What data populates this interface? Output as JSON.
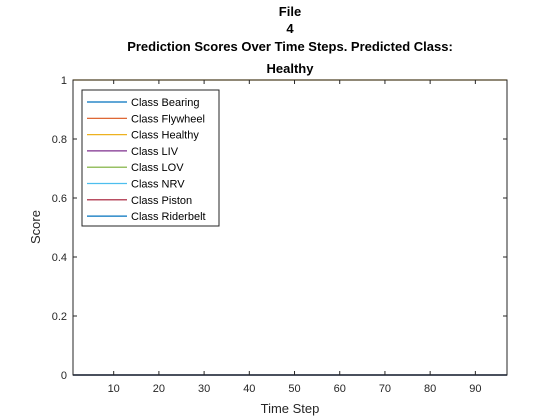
{
  "chart_data": {
    "type": "line",
    "title_lines": [
      "File",
      "4",
      "Prediction Scores Over Time Steps. Predicted Class:",
      "Healthy"
    ],
    "xlabel": "Time Step",
    "ylabel": "Score",
    "xlim": [
      1,
      97
    ],
    "ylim": [
      0,
      1
    ],
    "x_ticks": [
      10,
      20,
      30,
      40,
      50,
      60,
      70,
      80,
      90
    ],
    "y_ticks": [
      0,
      0.2,
      0.4,
      0.6,
      0.8,
      1
    ],
    "y_tick_labels": [
      "0",
      "0.2",
      "0.4",
      "0.6",
      "0.8",
      "1"
    ],
    "grid": false,
    "legend_position": "top-left",
    "series": [
      {
        "name": "Class Bearing",
        "color": "#0072BD",
        "x_range": [
          1,
          97
        ],
        "value": 0
      },
      {
        "name": "Class Flywheel",
        "color": "#D95319",
        "x_range": [
          1,
          97
        ],
        "value": 0
      },
      {
        "name": "Class Healthy",
        "color": "#EDB120",
        "x_range": [
          1,
          97
        ],
        "value": 1
      },
      {
        "name": "Class LIV",
        "color": "#7E2F8E",
        "x_range": [
          1,
          97
        ],
        "value": 0
      },
      {
        "name": "Class LOV",
        "color": "#77AC30",
        "x_range": [
          1,
          97
        ],
        "value": 0
      },
      {
        "name": "Class NRV",
        "color": "#4DBEEE",
        "x_range": [
          1,
          97
        ],
        "value": 0
      },
      {
        "name": "Class Piston",
        "color": "#A2142F",
        "x_range": [
          1,
          97
        ],
        "value": 0
      },
      {
        "name": "Class Riderbelt",
        "color": "#0072BD",
        "x_range": [
          1,
          97
        ],
        "value": 0
      }
    ]
  }
}
